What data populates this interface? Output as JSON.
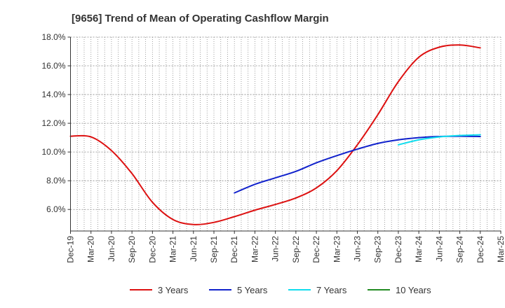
{
  "chart_data": {
    "type": "line",
    "title": "[9656]  Trend of Mean of Operating Cashflow Margin",
    "xlabel": "",
    "ylabel": "",
    "ylim": [
      4.5,
      18.0
    ],
    "y_ticks": [
      6.0,
      8.0,
      10.0,
      12.0,
      14.0,
      16.0,
      18.0
    ],
    "y_tick_labels": [
      "6.0%",
      "8.0%",
      "10.0%",
      "12.0%",
      "14.0%",
      "16.0%",
      "18.0%"
    ],
    "categories": [
      "Dec-19",
      "Mar-20",
      "Jun-20",
      "Sep-20",
      "Dec-20",
      "Mar-21",
      "Jun-21",
      "Sep-21",
      "Dec-21",
      "Mar-22",
      "Jun-22",
      "Sep-22",
      "Dec-22",
      "Mar-23",
      "Jun-23",
      "Sep-23",
      "Dec-23",
      "Mar-24",
      "Jun-24",
      "Sep-24",
      "Dec-24",
      "Mar-25"
    ],
    "grid": true,
    "legend_position": "bottom",
    "series": [
      {
        "name": "3 Years",
        "color": "#dd1111",
        "values": [
          11.1,
          11.05,
          10.1,
          8.5,
          6.5,
          5.3,
          4.95,
          5.1,
          5.5,
          5.95,
          6.35,
          6.8,
          7.5,
          8.7,
          10.5,
          12.6,
          14.9,
          16.6,
          17.3,
          17.45,
          17.25,
          null
        ]
      },
      {
        "name": "5 Years",
        "color": "#1122cc",
        "values": [
          null,
          null,
          null,
          null,
          null,
          null,
          null,
          null,
          7.15,
          7.75,
          8.2,
          8.65,
          9.25,
          9.75,
          10.2,
          10.6,
          10.85,
          11.0,
          11.08,
          11.1,
          11.08,
          null
        ]
      },
      {
        "name": "7 Years",
        "color": "#11ddee",
        "values": [
          null,
          null,
          null,
          null,
          null,
          null,
          null,
          null,
          null,
          null,
          null,
          null,
          null,
          null,
          null,
          null,
          10.5,
          10.85,
          11.05,
          11.15,
          11.2,
          null
        ]
      },
      {
        "name": "10 Years",
        "color": "#228b22",
        "values": [
          null,
          null,
          null,
          null,
          null,
          null,
          null,
          null,
          null,
          null,
          null,
          null,
          null,
          null,
          null,
          null,
          null,
          null,
          null,
          null,
          null,
          null
        ]
      }
    ]
  }
}
